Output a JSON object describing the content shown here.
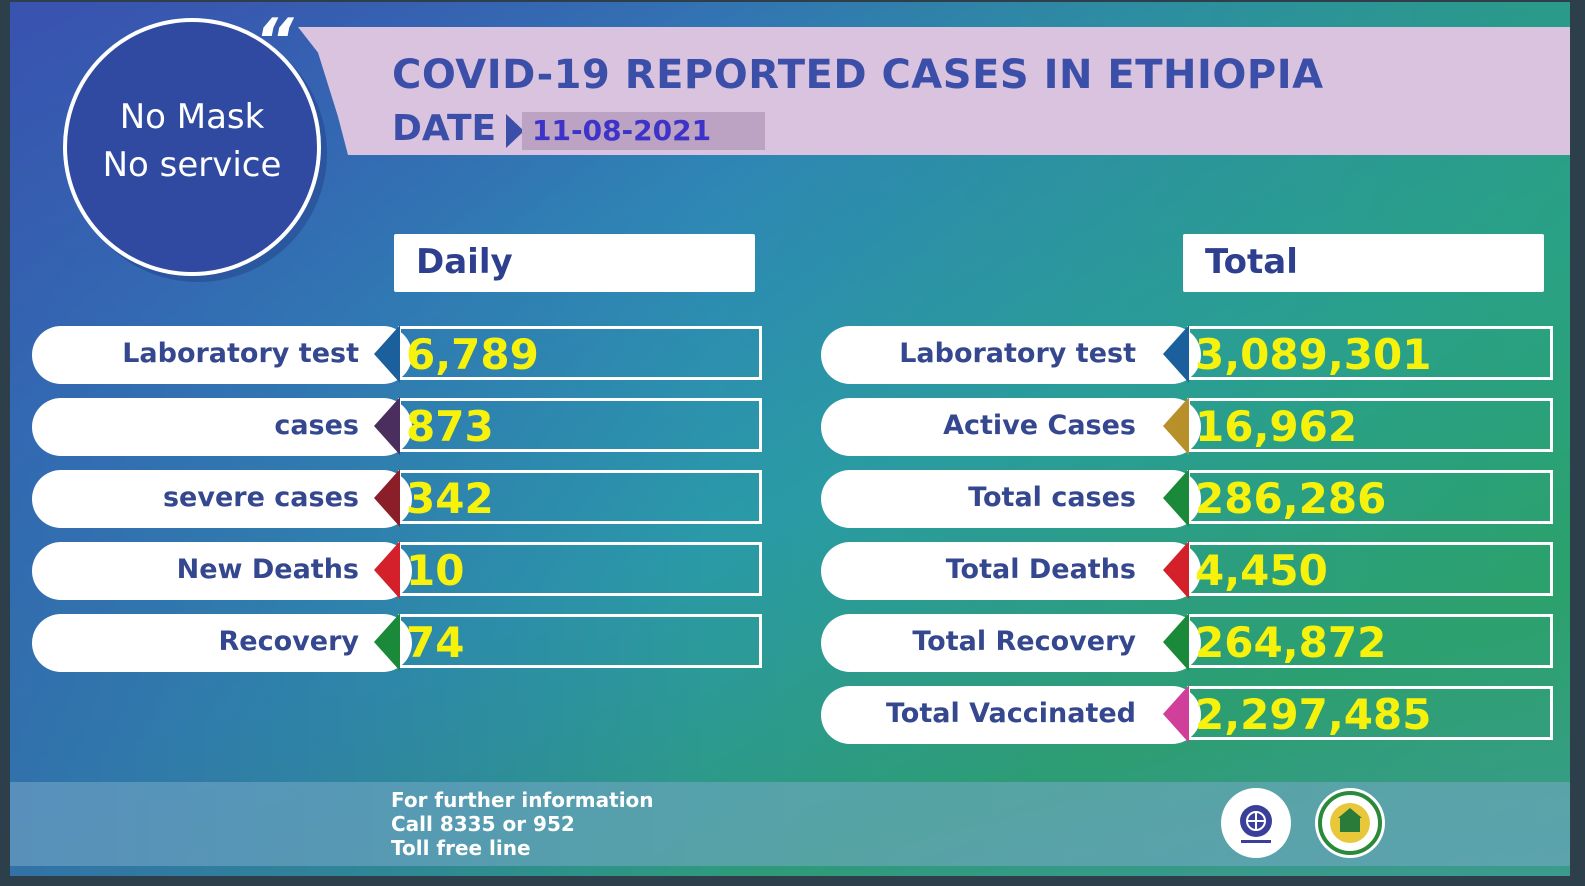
{
  "header": {
    "title": "COVID-19 REPORTED CASES IN ETHIOPIA",
    "date_label": "DATE",
    "date_value": "11-08-2021"
  },
  "slogan": {
    "line1": "No Mask",
    "line2": "No service",
    "quote_mark": "“"
  },
  "daily": {
    "heading": "Daily",
    "rows": [
      {
        "label": "Laboratory test",
        "value": "6,789",
        "color": "#1b5f9c"
      },
      {
        "label": "cases",
        "value": "873",
        "color": "#4a2f5e"
      },
      {
        "label": "severe cases",
        "value": "342",
        "color": "#8a1f2a"
      },
      {
        "label": "New Deaths",
        "value": "10",
        "color": "#d4202a"
      },
      {
        "label": "Recovery",
        "value": "74",
        "color": "#1a8a3a"
      }
    ]
  },
  "total": {
    "heading": "Total",
    "rows": [
      {
        "label": "Laboratory test",
        "value": "3,089,301",
        "color": "#1b5f9c"
      },
      {
        "label": "Active Cases",
        "value": "16,962",
        "color": "#b8902a"
      },
      {
        "label": "Total cases",
        "value": "286,286",
        "color": "#1a8a3a"
      },
      {
        "label": "Total Deaths",
        "value": "4,450",
        "color": "#d4202a"
      },
      {
        "label": "Total Recovery",
        "value": "264,872",
        "color": "#1a8a3a"
      },
      {
        "label": "Total Vaccinated",
        "value": "2,297,485",
        "color": "#d0409a"
      }
    ]
  },
  "footer": {
    "line1": "For further information",
    "line2": "Call 8335 or 952",
    "line3": "Toll free line",
    "logo1_icon": "health-ministry-logo-icon",
    "logo2_icon": "public-health-institute-logo-icon"
  },
  "colors": {
    "title": "#3b4fa8",
    "value": "#f7f20c",
    "banner": "#d9c3df"
  }
}
